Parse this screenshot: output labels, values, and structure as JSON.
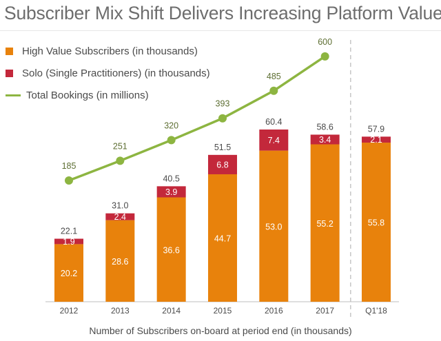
{
  "title": "Subscriber Mix Shift Delivers Increasing Platform Value",
  "caption": "Number of Subscribers on-board at period end (in thousands)",
  "colors": {
    "high_value": "#E8820C",
    "solo": "#C3283B",
    "bookings": "#8DB541"
  },
  "legend": [
    {
      "label": "High Value Subscribers (in thousands)",
      "symbol": "square",
      "color": "#E8820C"
    },
    {
      "label": "Solo (Single Practitioners) (in thousands)",
      "symbol": "square",
      "color": "#C3283B"
    },
    {
      "label": "Total Bookings (in millions)",
      "symbol": "line",
      "color": "#8DB541"
    }
  ],
  "chart_data": {
    "type": "bar",
    "stacked": true,
    "categories": [
      "2012",
      "2013",
      "2014",
      "2015",
      "2016",
      "2017",
      "Q1'18"
    ],
    "series": [
      {
        "name": "High Value Subscribers (in thousands)",
        "values": [
          20.2,
          28.6,
          36.6,
          44.7,
          53.0,
          55.2,
          55.8
        ]
      },
      {
        "name": "Solo (Single Practitioners) (in thousands)",
        "values": [
          1.9,
          2.4,
          3.9,
          6.8,
          7.4,
          3.4,
          2.1
        ]
      }
    ],
    "totals": [
      22.1,
      31.0,
      40.5,
      51.5,
      60.4,
      58.6,
      57.9
    ],
    "line_series": {
      "name": "Total Bookings (in millions)",
      "categories": [
        "2012",
        "2013",
        "2014",
        "2015",
        "2016",
        "2017"
      ],
      "values": [
        185,
        251,
        320,
        393,
        485,
        600
      ]
    },
    "ylim": [
      0,
      60.4
    ],
    "xlabel": "Number of Subscribers on-board at period end (in thousands)",
    "ylabel": "",
    "grid": false,
    "divider_before": "Q1'18"
  }
}
